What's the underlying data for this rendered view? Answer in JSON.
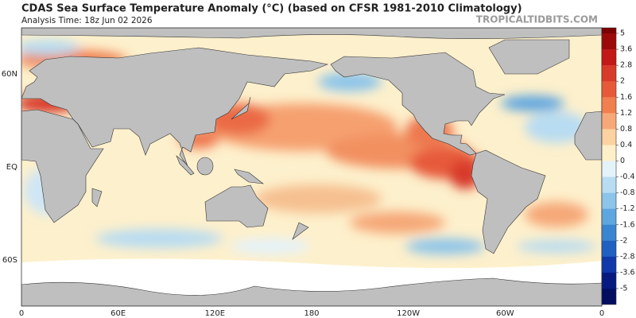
{
  "header": {
    "title": "CDAS Sea Surface Temperature Anomaly (°C) (based on CFSR 1981-2010 Climatology)",
    "analysis_time": "Analysis Time: 18z Jun 02 2026",
    "watermark": "TROPICALTIDBITS.COM"
  },
  "map": {
    "lat_labels": [
      "60N",
      "EQ",
      "60S"
    ],
    "lon_labels": [
      "0",
      "60E",
      "120E",
      "180",
      "120W",
      "60W",
      "0"
    ]
  },
  "colorbar": {
    "ticks": [
      5,
      3.6,
      2.8,
      2,
      1.6,
      1.2,
      0.8,
      0.4,
      0,
      -0.4,
      -0.8,
      -1.2,
      -1.6,
      -2,
      -2.8,
      -3.6,
      -5
    ]
  }
}
